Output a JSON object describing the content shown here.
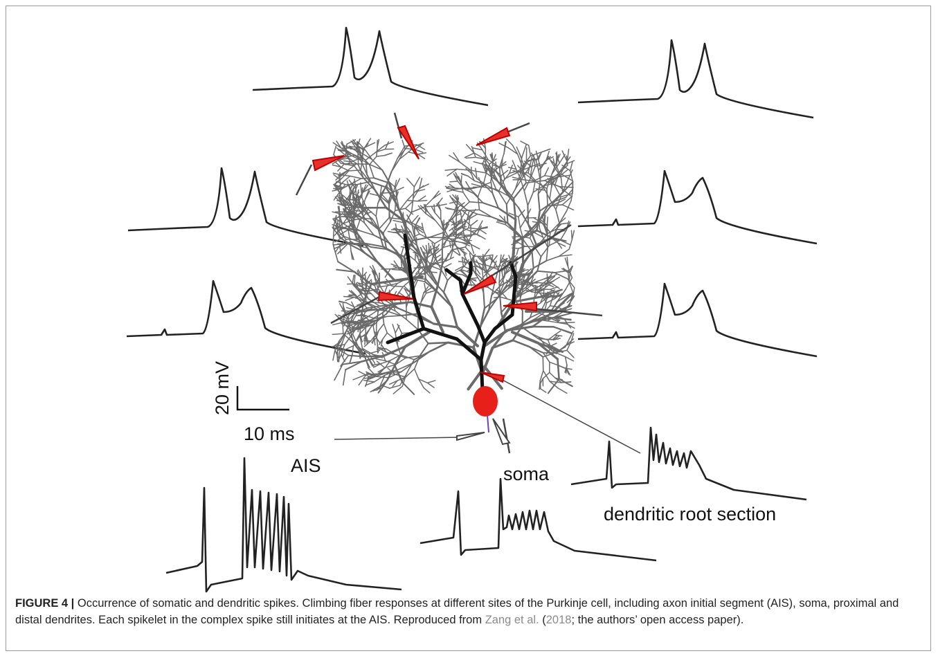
{
  "figure": {
    "labels": {
      "voltage_scale": "20 mV",
      "time_scale": "10 ms",
      "ais": "AIS",
      "soma": "soma",
      "dendritic_root": "dendritic root section"
    },
    "caption": {
      "label": "FIGURE 4 |",
      "text": " Occurrence of somatic and dendritic spikes. Climbing fiber responses at different sites of the Purkinje cell, including axon initial segment (AIS), soma, proximal and distal dendrites. Each spikelet in the complex spike still initiates at the AIS. Reproduced from ",
      "link_authors": "Zang et al.",
      "open_paren": " (",
      "link_year": "2018",
      "tail": "; the authors’ open access paper)."
    }
  }
}
